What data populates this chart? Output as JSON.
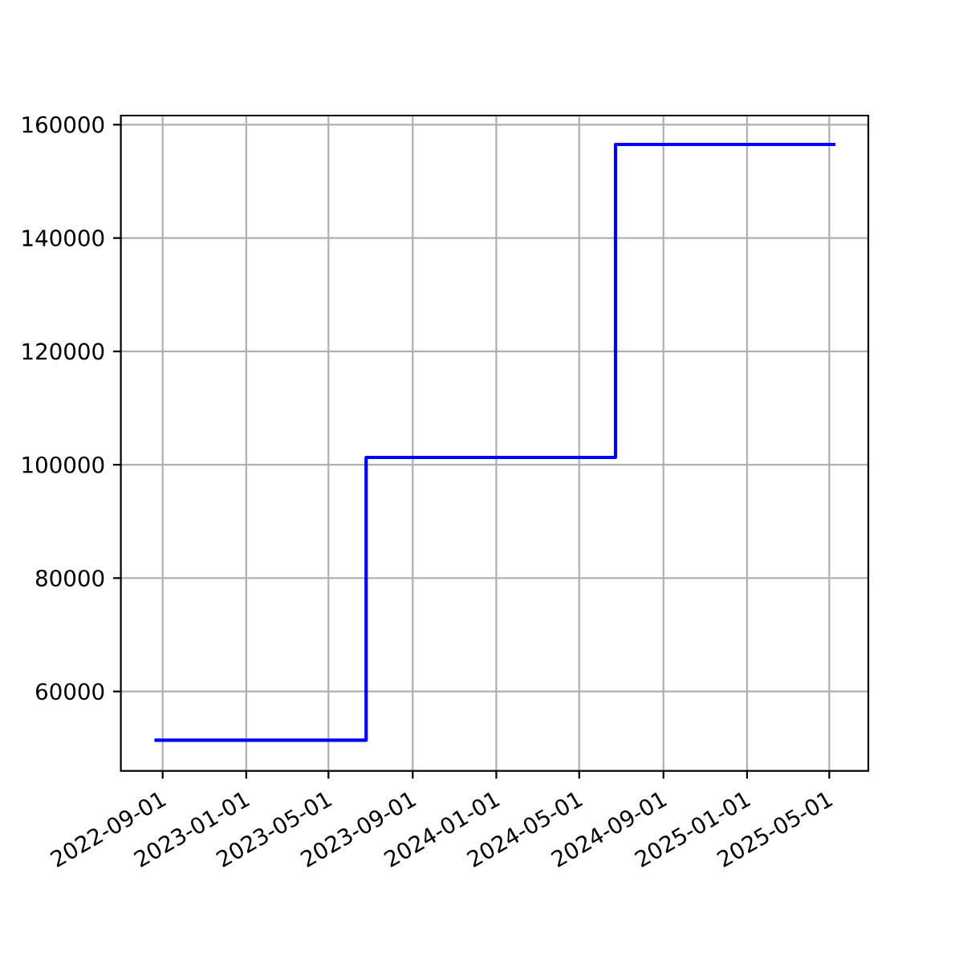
{
  "chart_data": {
    "type": "step",
    "x": [
      "2022-08-20",
      "2023-06-25",
      "2024-06-23",
      "2025-05-10"
    ],
    "values": [
      51400,
      101300,
      156500,
      156500
    ],
    "color": "#0000ff",
    "xlim": [
      "2022-07-02",
      "2025-06-27"
    ],
    "ylim": [
      46000,
      161600
    ],
    "xticks": [
      "2022-09-01",
      "2023-01-01",
      "2023-05-01",
      "2023-09-01",
      "2024-01-01",
      "2024-05-01",
      "2024-09-01",
      "2025-01-01",
      "2025-05-01"
    ],
    "yticks": [
      60000,
      80000,
      100000,
      120000,
      140000,
      160000
    ],
    "grid": true
  }
}
